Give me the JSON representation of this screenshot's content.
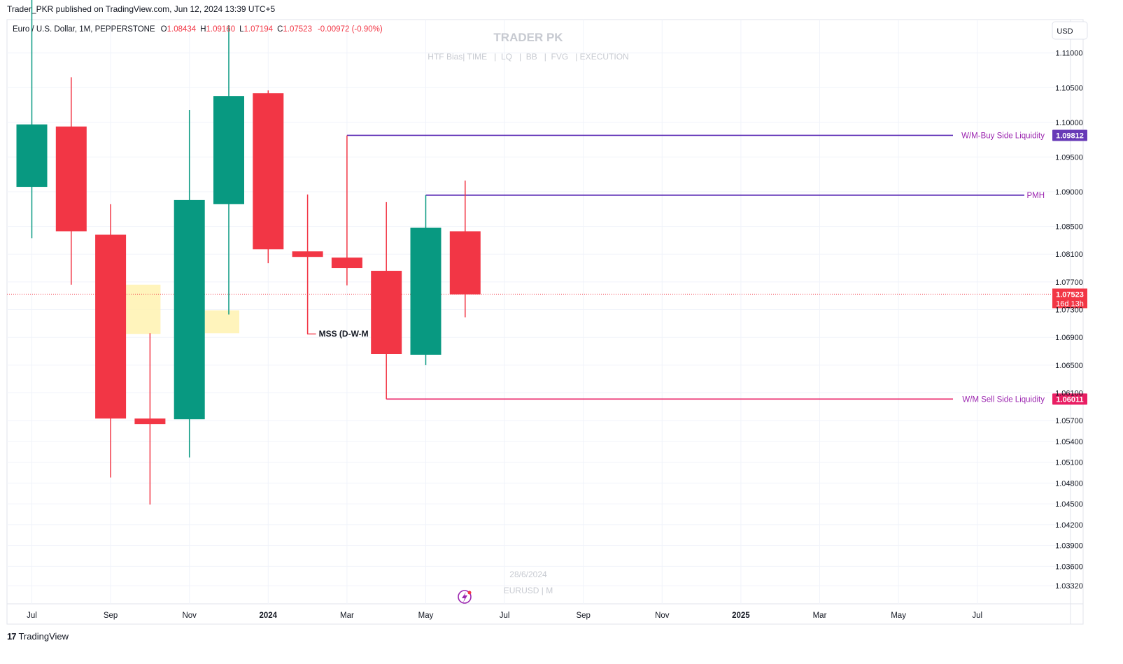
{
  "header": {
    "published": "Trader_PKR published on TradingView.com, Jun 12, 2024 13:39 UTC+5"
  },
  "legend": {
    "symbol": "Euro / U.S. Dollar, 1M, PEPPERSTONE",
    "o_label": "O",
    "o_value": "1.08434",
    "h_label": "H",
    "h_value": "1.09160",
    "l_label": "L",
    "l_value": "1.07194",
    "c_label": "C",
    "c_value": "1.07523",
    "change": "-0.00972 (-0.90%)"
  },
  "watermark": {
    "title": "TRADER PK",
    "subtitle": "HTF Bias| TIME   |  LQ   |  BB   |  FVG   | EXECUTION",
    "date": "28/6/2024",
    "symbol": "EURUSD | M"
  },
  "currency_button": "USD",
  "footer": {
    "brand": "TradingView",
    "logo": "17"
  },
  "colors": {
    "up": "#089981",
    "down": "#f23645",
    "fvg": "#fff2b0",
    "purple_line": "#5b2bb5",
    "pink_line": "#e91e63",
    "label_text": "#9c27b0"
  },
  "chart_data": {
    "type": "candlestick",
    "symbol": "EURUSD",
    "timeframe": "1M",
    "ylim": [
      1.0315,
      1.1135
    ],
    "y_ticks": [
      "1.11000",
      "1.10500",
      "1.10000",
      "1.09500",
      "1.09000",
      "1.08500",
      "1.08100",
      "1.07700",
      "1.07300",
      "1.06900",
      "1.06500",
      "1.06100",
      "1.05700",
      "1.05400",
      "1.05100",
      "1.04800",
      "1.04500",
      "1.04200",
      "1.03900",
      "1.03600",
      "1.03320"
    ],
    "x_ticks": [
      {
        "label": "Jul",
        "bold": false
      },
      {
        "label": "Sep",
        "bold": false
      },
      {
        "label": "Nov",
        "bold": false
      },
      {
        "label": "2024",
        "bold": true
      },
      {
        "label": "Mar",
        "bold": false
      },
      {
        "label": "May",
        "bold": false
      },
      {
        "label": "Jul",
        "bold": false
      },
      {
        "label": "Sep",
        "bold": false
      },
      {
        "label": "Nov",
        "bold": false
      },
      {
        "label": "2025",
        "bold": true
      },
      {
        "label": "Mar",
        "bold": false
      },
      {
        "label": "May",
        "bold": false
      },
      {
        "label": "Jul",
        "bold": false
      }
    ],
    "candles": [
      {
        "month": "2023-07",
        "o": 1.0907,
        "h": 1.1276,
        "l": 1.0833,
        "c": 1.0997
      },
      {
        "month": "2023-08",
        "o": 1.0994,
        "h": 1.1065,
        "l": 1.0766,
        "c": 1.0843
      },
      {
        "month": "2023-09",
        "o": 1.0838,
        "h": 1.0882,
        "l": 1.0488,
        "c": 1.0573
      },
      {
        "month": "2023-10",
        "o": 1.0573,
        "h": 1.0696,
        "l": 1.0449,
        "c": 1.0565
      },
      {
        "month": "2023-11",
        "o": 1.0572,
        "h": 1.1018,
        "l": 1.0517,
        "c": 1.0888
      },
      {
        "month": "2023-12",
        "o": 1.0882,
        "h": 1.114,
        "l": 1.0723,
        "c": 1.1038
      },
      {
        "month": "2024-01",
        "o": 1.1042,
        "h": 1.1046,
        "l": 1.0797,
        "c": 1.0817
      },
      {
        "month": "2024-02",
        "o": 1.0814,
        "h": 1.0896,
        "l": 1.0695,
        "c": 1.0806
      },
      {
        "month": "2024-03",
        "o": 1.0805,
        "h": 1.0981,
        "l": 1.0765,
        "c": 1.079
      },
      {
        "month": "2024-04",
        "o": 1.0786,
        "h": 1.0885,
        "l": 1.0601,
        "c": 1.0666
      },
      {
        "month": "2024-05",
        "o": 1.0665,
        "h": 1.0895,
        "l": 1.065,
        "c": 1.0848
      },
      {
        "month": "2024-06",
        "o": 1.0843,
        "h": 1.0916,
        "l": 1.0719,
        "c": 1.0752
      }
    ],
    "fvg_zones": [
      {
        "from": "2023-09",
        "to": "2023-10",
        "top": 1.0766,
        "bottom": 1.0695
      },
      {
        "from": "2023-11",
        "to": "2023-12",
        "top": 1.0729,
        "bottom": 1.0696
      }
    ],
    "levels": [
      {
        "label": "W/M-Buy Side Liquidity",
        "price_text": "1.09812",
        "value": 1.09812,
        "from": "2024-03",
        "color": "#5b2bb5",
        "badge": "#673ab7"
      },
      {
        "label": "PMH",
        "price_text": "",
        "value": 1.0895,
        "from": "2024-05",
        "color": "#5b2bb5",
        "badge": ""
      },
      {
        "label": "W/M Sell Side Liquidity",
        "price_text": "1.06011",
        "value": 1.06011,
        "from": "2024-04",
        "color": "#e91e63",
        "badge": "#e91e63"
      }
    ],
    "mss": {
      "label": "MSS (D-W-M",
      "value": 1.0695,
      "from": "2024-02"
    },
    "current_price": {
      "value": 1.07523,
      "text": "1.07523",
      "countdown": "16d 13h"
    }
  }
}
